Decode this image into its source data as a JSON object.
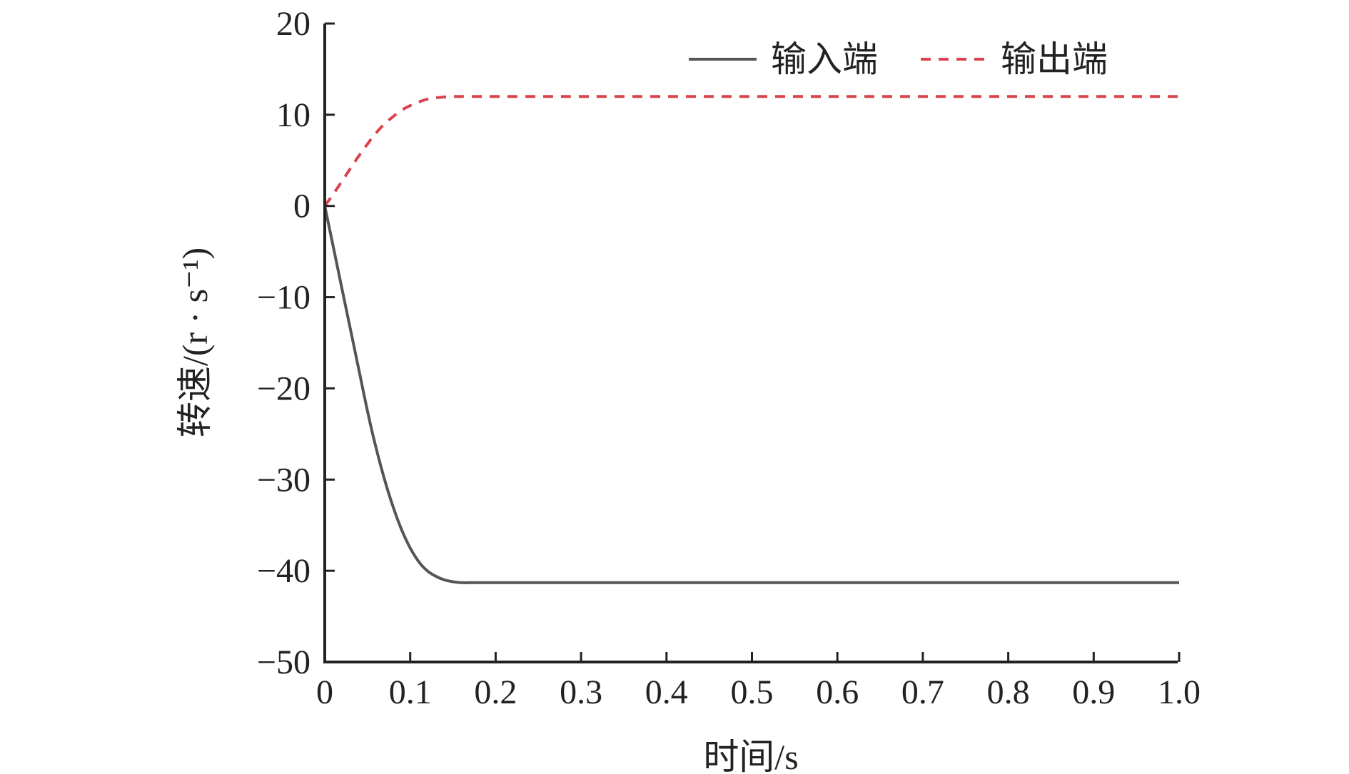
{
  "chart_data": {
    "type": "line",
    "xlabel": "时间/s",
    "ylabel": "转速/(r · s⁻¹)",
    "xlim": [
      0,
      1.0
    ],
    "ylim": [
      -50,
      20
    ],
    "xticks": [
      {
        "value": 0,
        "label": "0"
      },
      {
        "value": 0.1,
        "label": "0.1"
      },
      {
        "value": 0.2,
        "label": "0.2"
      },
      {
        "value": 0.3,
        "label": "0.3"
      },
      {
        "value": 0.4,
        "label": "0.4"
      },
      {
        "value": 0.5,
        "label": "0.5"
      },
      {
        "value": 0.6,
        "label": "0.6"
      },
      {
        "value": 0.7,
        "label": "0.7"
      },
      {
        "value": 0.8,
        "label": "0.8"
      },
      {
        "value": 0.9,
        "label": "0.9"
      },
      {
        "value": 1.0,
        "label": "1.0"
      }
    ],
    "yticks": [
      {
        "value": 20,
        "label": "20"
      },
      {
        "value": 10,
        "label": "10"
      },
      {
        "value": 0,
        "label": "0"
      },
      {
        "value": -10,
        "label": "−10"
      },
      {
        "value": -20,
        "label": "−20"
      },
      {
        "value": -30,
        "label": "−30"
      },
      {
        "value": -40,
        "label": "−40"
      },
      {
        "value": -50,
        "label": "−50"
      }
    ],
    "grid": false,
    "legend_position": "top-right",
    "series": [
      {
        "name": "输入端",
        "color": "#555555",
        "dash": "solid",
        "x": [
          0,
          0.01,
          0.02,
          0.03,
          0.04,
          0.05,
          0.06,
          0.07,
          0.08,
          0.09,
          0.1,
          0.11,
          0.12,
          0.13,
          0.14,
          0.15,
          0.16,
          0.17,
          0.18,
          0.19,
          0.2,
          0.25,
          0.3,
          0.4,
          0.5,
          0.6,
          0.7,
          0.8,
          0.9,
          1.0
        ],
        "values": [
          0,
          -4.5,
          -9.0,
          -13.5,
          -18.0,
          -22.5,
          -26.5,
          -30.0,
          -33.0,
          -35.5,
          -37.5,
          -39.0,
          -40.0,
          -40.6,
          -41.0,
          -41.2,
          -41.3,
          -41.3,
          -41.3,
          -41.3,
          -41.3,
          -41.3,
          -41.3,
          -41.3,
          -41.3,
          -41.3,
          -41.3,
          -41.3,
          -41.3,
          -41.3
        ]
      },
      {
        "name": "输出端",
        "color": "#d9434c",
        "dash": "dashed",
        "x": [
          0,
          0.01,
          0.02,
          0.03,
          0.04,
          0.05,
          0.06,
          0.07,
          0.08,
          0.09,
          0.1,
          0.11,
          0.12,
          0.13,
          0.14,
          0.15,
          0.16,
          0.18,
          0.2,
          0.25,
          0.3,
          0.4,
          0.5,
          0.6,
          0.7,
          0.8,
          0.9,
          1.0
        ],
        "values": [
          0,
          1.3,
          2.7,
          4.1,
          5.5,
          6.8,
          8.0,
          9.0,
          9.8,
          10.5,
          11.0,
          11.4,
          11.7,
          11.85,
          11.95,
          12.0,
          12.0,
          12.0,
          12.0,
          12.0,
          12.0,
          12.0,
          12.0,
          12.0,
          12.0,
          12.0,
          12.0,
          12.0
        ]
      }
    ]
  }
}
